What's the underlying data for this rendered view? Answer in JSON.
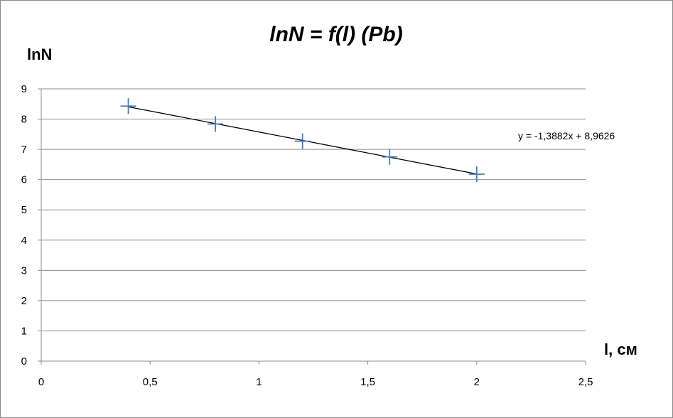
{
  "chart_data": {
    "type": "scatter",
    "title": "lnN = f(l) (Pb)",
    "xlabel": "l, см",
    "ylabel": "lnN",
    "xlim": [
      0,
      2.5
    ],
    "ylim": [
      0,
      9
    ],
    "x_ticks": [
      "0",
      "0,5",
      "1",
      "1,5",
      "2",
      "2,5"
    ],
    "y_ticks": [
      "0",
      "1",
      "2",
      "3",
      "4",
      "5",
      "6",
      "7",
      "8",
      "9"
    ],
    "x_tick_values": [
      0,
      0.5,
      1,
      1.5,
      2,
      2.5
    ],
    "y_tick_values": [
      0,
      1,
      2,
      3,
      4,
      5,
      6,
      7,
      8,
      9
    ],
    "grid": "horizontal",
    "series": [
      {
        "x": [
          0.4,
          0.8,
          1.2,
          1.6,
          2.0
        ],
        "y": [
          8.43,
          7.84,
          7.27,
          6.75,
          6.18
        ],
        "marker": "plus",
        "color": "#4a7ab5"
      }
    ],
    "trendline": {
      "type": "linear",
      "slope": -1.3882,
      "intercept": 8.9626,
      "x_range": [
        0.4,
        2.0
      ],
      "color": "#000000",
      "equation": "y = -1,3882x + 8,9626"
    }
  }
}
